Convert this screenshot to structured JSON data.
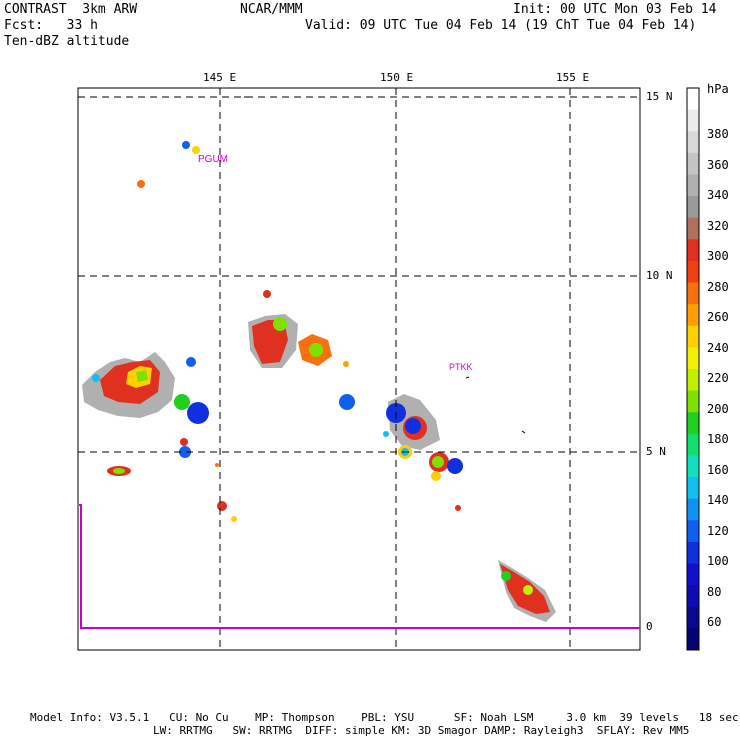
{
  "header": {
    "model": "CONTRAST  3km ARW",
    "org": "NCAR/MMM",
    "init": "Init: 00 UTC Mon 03 Feb 14",
    "fcst": "Fcst:   33 h",
    "valid": "Valid: 09 UTC Tue 04 Feb 14 (19 ChT Tue 04 Feb 14)",
    "field": "Ten-dBZ altitude"
  },
  "axes": {
    "lon_labels": [
      "145 E",
      "150 E",
      "155 E"
    ],
    "lat_labels": [
      "15 N",
      "10 N",
      "5 N",
      "0"
    ]
  },
  "stations": [
    {
      "id": "PGUM",
      "label": "PGUM"
    },
    {
      "id": "PTKK",
      "label": "PTKK"
    }
  ],
  "colorbar": {
    "unit": "hPa",
    "labels": [
      "380",
      "360",
      "340",
      "320",
      "300",
      "280",
      "260",
      "240",
      "220",
      "200",
      "180",
      "160",
      "140",
      "120",
      "100",
      "80",
      "60"
    ],
    "colors": [
      "#ffffff",
      "#ececec",
      "#d8d8d8",
      "#c4c4c4",
      "#b0b0b0",
      "#9a9a9a",
      "#b07060",
      "#e03020",
      "#f04010",
      "#f87010",
      "#ffa000",
      "#ffd000",
      "#f0f000",
      "#c0f000",
      "#80e000",
      "#20d020",
      "#10e070",
      "#10e0c0",
      "#10c0f0",
      "#1090f0",
      "#1060f0",
      "#1030e0",
      "#1010d0",
      "#0c0cb0",
      "#080890",
      "#040470"
    ]
  },
  "footer": {
    "line1": "Model Info: V3.5.1   CU: No Cu    MP: Thompson    PBL: YSU      SF: Noah LSM     3.0 km  39 levels   18 sec",
    "line2": "LW: RRTMG   SW: RRTMG  DIFF: simple KM: 3D Smagor DAMP: Rayleigh3  SFLAY: Rev MM5"
  }
}
